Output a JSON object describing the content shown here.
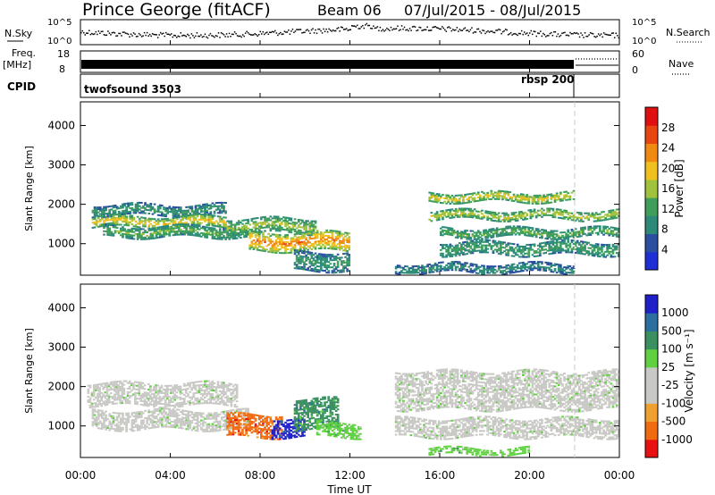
{
  "header": {
    "station": "Prince George (fitACF)",
    "beam": "Beam 06",
    "date_range": "07/Jul/2015 - 08/Jul/2015"
  },
  "summary": {
    "nsky_label": "N.Sky",
    "nsky_ticks": [
      "10^5",
      "10^0"
    ],
    "nsearch_label": "N.Search",
    "nsearch_ticks": [
      "10^5",
      "10^0"
    ],
    "freq_label_1": "Freq.",
    "freq_label_2": "[MHz]",
    "freq_ticks": [
      "18",
      "8"
    ],
    "nave_label": "Nave",
    "nave_ticks": [
      "60",
      "0"
    ],
    "cpid_label": "CPID",
    "cpid_1": "twofsound 3503",
    "cpid_2": "rbsp 200"
  },
  "colors": {
    "power_scale": [
      "#1f2fd6",
      "#2a4fa0",
      "#2e8a78",
      "#3f9e5a",
      "#a0c23c",
      "#f0c020",
      "#f08a10",
      "#e84510",
      "#e01010"
    ],
    "velocity_scale": [
      "#e81010",
      "#f06a10",
      "#f0a030",
      "#c8c8c4",
      "#c8c8c4",
      "#5fd040",
      "#3a9060",
      "#2a6fa0",
      "#2020c8"
    ]
  },
  "chart_data": [
    {
      "type": "heatmap",
      "title": "Power",
      "xlabel": "",
      "ylabel": "Slant Range [km]",
      "x_ticks": [
        "00:00",
        "04:00",
        "08:00",
        "12:00",
        "16:00",
        "20:00",
        "00:00"
      ],
      "y_ticks": [
        "1000",
        "2000",
        "3000",
        "4000"
      ],
      "ylim": [
        200,
        4600
      ],
      "colorbar_label": "Power [dB]",
      "colorbar_ticks": [
        "4",
        "8",
        "12",
        "16",
        "20",
        "24",
        "28"
      ],
      "colorbar_range": [
        0,
        32
      ],
      "bands": [
        {
          "t0": 0.5,
          "t1": 6.5,
          "r0": 1700,
          "r1": 2000,
          "v": 10
        },
        {
          "t0": 0.5,
          "t1": 6.5,
          "r0": 1400,
          "r1": 1700,
          "v": 20
        },
        {
          "t0": 1.0,
          "t1": 7.5,
          "r0": 1150,
          "r1": 1450,
          "v": 14
        },
        {
          "t0": 6.5,
          "t1": 10.5,
          "r0": 1250,
          "r1": 1650,
          "v": 16
        },
        {
          "t0": 7.5,
          "t1": 12.0,
          "r0": 800,
          "r1": 1300,
          "v": 24
        },
        {
          "t0": 9.5,
          "t1": 12.0,
          "r0": 300,
          "r1": 800,
          "v": 10
        },
        {
          "t0": 15.5,
          "t1": 22.0,
          "r0": 2050,
          "r1": 2300,
          "v": 20
        },
        {
          "t0": 15.5,
          "t1": 24.0,
          "r0": 1600,
          "r1": 1850,
          "v": 18
        },
        {
          "t0": 16.0,
          "t1": 24.0,
          "r0": 1150,
          "r1": 1400,
          "v": 14
        },
        {
          "t0": 16.0,
          "t1": 24.0,
          "r0": 700,
          "r1": 1050,
          "v": 12
        },
        {
          "t0": 14.0,
          "t1": 22.0,
          "r0": 250,
          "r1": 500,
          "v": 9
        }
      ]
    },
    {
      "type": "heatmap",
      "title": "Velocity",
      "xlabel": "Time UT",
      "ylabel": "Slant Range [km]",
      "x_ticks": [
        "00:00",
        "04:00",
        "08:00",
        "12:00",
        "16:00",
        "20:00",
        "00:00"
      ],
      "y_ticks": [
        "1000",
        "2000",
        "3000",
        "4000"
      ],
      "ylim": [
        200,
        4600
      ],
      "colorbar_label": "Velocity [m s⁻¹]",
      "colorbar_ticks": [
        "-1000",
        "-500",
        "-100",
        "-25",
        "25",
        "100",
        "500",
        "1000"
      ],
      "bands": [
        {
          "t0": 0.3,
          "t1": 7.0,
          "r0": 1500,
          "r1": 2100,
          "c": 4
        },
        {
          "t0": 0.5,
          "t1": 7.5,
          "r0": 900,
          "r1": 1400,
          "c": 4
        },
        {
          "t0": 6.5,
          "t1": 9.0,
          "r0": 700,
          "r1": 1300,
          "c": 1
        },
        {
          "t0": 8.5,
          "t1": 10.0,
          "r0": 700,
          "r1": 1200,
          "c": 8
        },
        {
          "t0": 9.5,
          "t1": 11.5,
          "r0": 900,
          "r1": 1700,
          "c": 6
        },
        {
          "t0": 10.5,
          "t1": 12.5,
          "r0": 700,
          "r1": 1100,
          "c": 5
        },
        {
          "t0": 14.0,
          "t1": 24.0,
          "r0": 1400,
          "r1": 2400,
          "c": 4
        },
        {
          "t0": 14.0,
          "t1": 24.0,
          "r0": 700,
          "r1": 1200,
          "c": 4
        },
        {
          "t0": 15.5,
          "t1": 20.0,
          "r0": 250,
          "r1": 450,
          "c": 5
        }
      ]
    }
  ]
}
